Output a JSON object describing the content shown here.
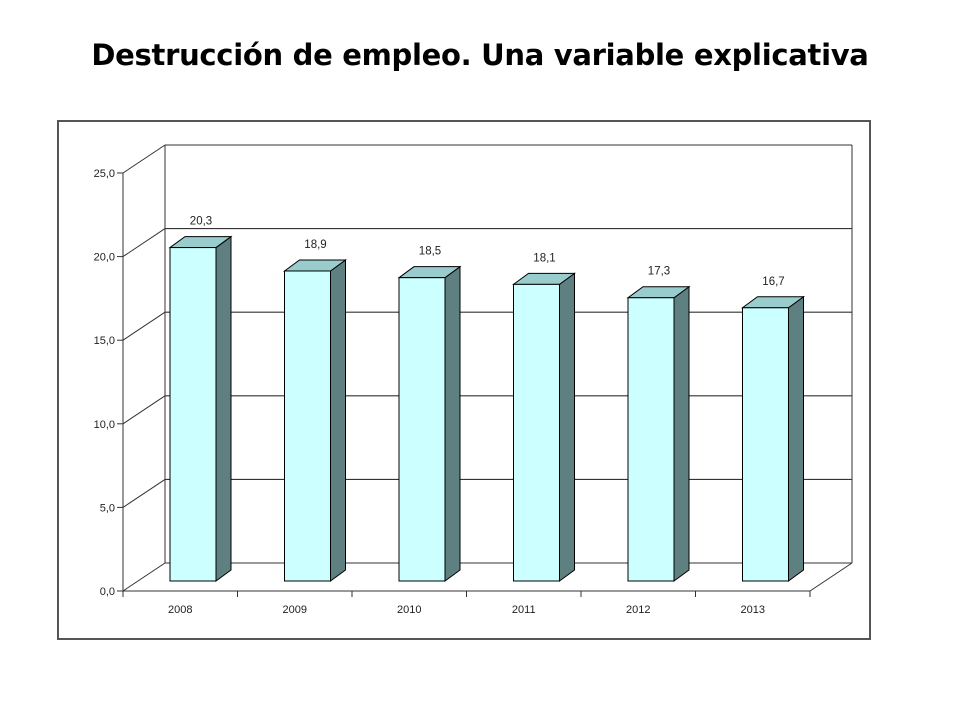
{
  "slide": {
    "title": "Destrucción de empleo. Una variable explicativa"
  },
  "colors": {
    "bar_front": "#ccffff",
    "bar_side": "#5f8080",
    "bar_top": "#99cccc",
    "bar_outline": "#000000",
    "gridline": "#333333",
    "frame": "#555555"
  },
  "chart_data": {
    "type": "bar",
    "style": "3d-column",
    "title": "",
    "xlabel": "",
    "ylabel": "",
    "categories": [
      "2008",
      "2009",
      "2010",
      "2011",
      "2012",
      "2013"
    ],
    "values": [
      20.3,
      18.9,
      18.5,
      18.1,
      17.3,
      16.7
    ],
    "value_labels": [
      "20,3",
      "18,9",
      "18,5",
      "18,1",
      "17,3",
      "16,7"
    ],
    "ylim": [
      0,
      25
    ],
    "yticks": [
      0,
      5,
      10,
      15,
      20,
      25
    ],
    "ytick_labels": [
      "0,0",
      "5,0",
      "10,0",
      "15,0",
      "20,0",
      "25,0"
    ],
    "grid": true,
    "legend": "none"
  }
}
